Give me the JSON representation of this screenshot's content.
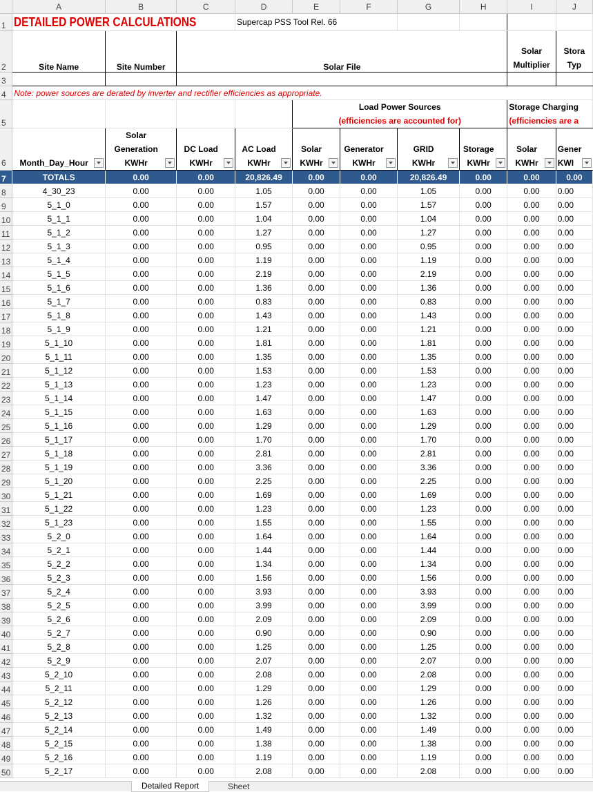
{
  "columns": [
    "A",
    "B",
    "C",
    "D",
    "E",
    "F",
    "G",
    "H",
    "I",
    "J"
  ],
  "row1": {
    "title": "DETAILED POWER CALCULATIONS",
    "subtitle": "Supercap PSS Tool Rel. 66"
  },
  "row2": {
    "site_name": "Site Name",
    "site_number": "Site Number",
    "solar_file": "Solar File",
    "solar_multiplier_1": "Solar",
    "solar_multiplier_2": "Multiplier",
    "storage_type_1": "Stora",
    "storage_type_2": "Typ"
  },
  "row4": {
    "note": "Note: power sources are derated by inverter and rectifier efficiencies as appropriate."
  },
  "row5": {
    "load_sources": "Load Power Sources",
    "load_eff": "(efficiencies are accounted for)",
    "storage_charging": "Storage Charging",
    "storage_eff": "(efficiencies are a"
  },
  "headers": [
    [
      "Month_Day_Hour"
    ],
    [
      "Solar",
      "Generation",
      "KWHr"
    ],
    [
      "DC Load",
      "KWHr"
    ],
    [
      "AC Load",
      "KWHr"
    ],
    [
      "Solar",
      "KWHr"
    ],
    [
      "Generator",
      "KWHr"
    ],
    [
      "GRID",
      "KWHr"
    ],
    [
      "Storage",
      "KWHr"
    ],
    [
      "Solar",
      "KWHr"
    ],
    [
      "Gener",
      "KWI"
    ]
  ],
  "totals": [
    "TOTALS",
    "0.00",
    "0.00",
    "20,826.49",
    "0.00",
    "0.00",
    "20,826.49",
    "0.00",
    "0.00",
    "0.00"
  ],
  "rows": [
    [
      "4_30_23",
      "1.05"
    ],
    [
      "5_1_0",
      "1.57"
    ],
    [
      "5_1_1",
      "1.04"
    ],
    [
      "5_1_2",
      "1.27"
    ],
    [
      "5_1_3",
      "0.95"
    ],
    [
      "5_1_4",
      "1.19"
    ],
    [
      "5_1_5",
      "2.19"
    ],
    [
      "5_1_6",
      "1.36"
    ],
    [
      "5_1_7",
      "0.83"
    ],
    [
      "5_1_8",
      "1.43"
    ],
    [
      "5_1_9",
      "1.21"
    ],
    [
      "5_1_10",
      "1.81"
    ],
    [
      "5_1_11",
      "1.35"
    ],
    [
      "5_1_12",
      "1.53"
    ],
    [
      "5_1_13",
      "1.23"
    ],
    [
      "5_1_14",
      "1.47"
    ],
    [
      "5_1_15",
      "1.63"
    ],
    [
      "5_1_16",
      "1.29"
    ],
    [
      "5_1_17",
      "1.70"
    ],
    [
      "5_1_18",
      "2.81"
    ],
    [
      "5_1_19",
      "3.36"
    ],
    [
      "5_1_20",
      "2.25"
    ],
    [
      "5_1_21",
      "1.69"
    ],
    [
      "5_1_22",
      "1.23"
    ],
    [
      "5_1_23",
      "1.55"
    ],
    [
      "5_2_0",
      "1.64"
    ],
    [
      "5_2_1",
      "1.44"
    ],
    [
      "5_2_2",
      "1.34"
    ],
    [
      "5_2_3",
      "1.56"
    ],
    [
      "5_2_4",
      "3.93"
    ],
    [
      "5_2_5",
      "3.99"
    ],
    [
      "5_2_6",
      "2.09"
    ],
    [
      "5_2_7",
      "0.90"
    ],
    [
      "5_2_8",
      "1.25"
    ],
    [
      "5_2_9",
      "2.07"
    ],
    [
      "5_2_10",
      "2.08"
    ],
    [
      "5_2_11",
      "1.29"
    ],
    [
      "5_2_12",
      "1.26"
    ],
    [
      "5_2_13",
      "1.32"
    ],
    [
      "5_2_14",
      "1.49"
    ],
    [
      "5_2_15",
      "1.38"
    ],
    [
      "5_2_16",
      "1.19"
    ],
    [
      "5_2_17",
      "2.08"
    ]
  ],
  "zero_value": "0.00",
  "sheet_tabs": {
    "active": "Detailed Report",
    "next": "Sheet"
  },
  "colors": {
    "totals_bg": "#2f5a8e",
    "title_red": "#e00000"
  }
}
